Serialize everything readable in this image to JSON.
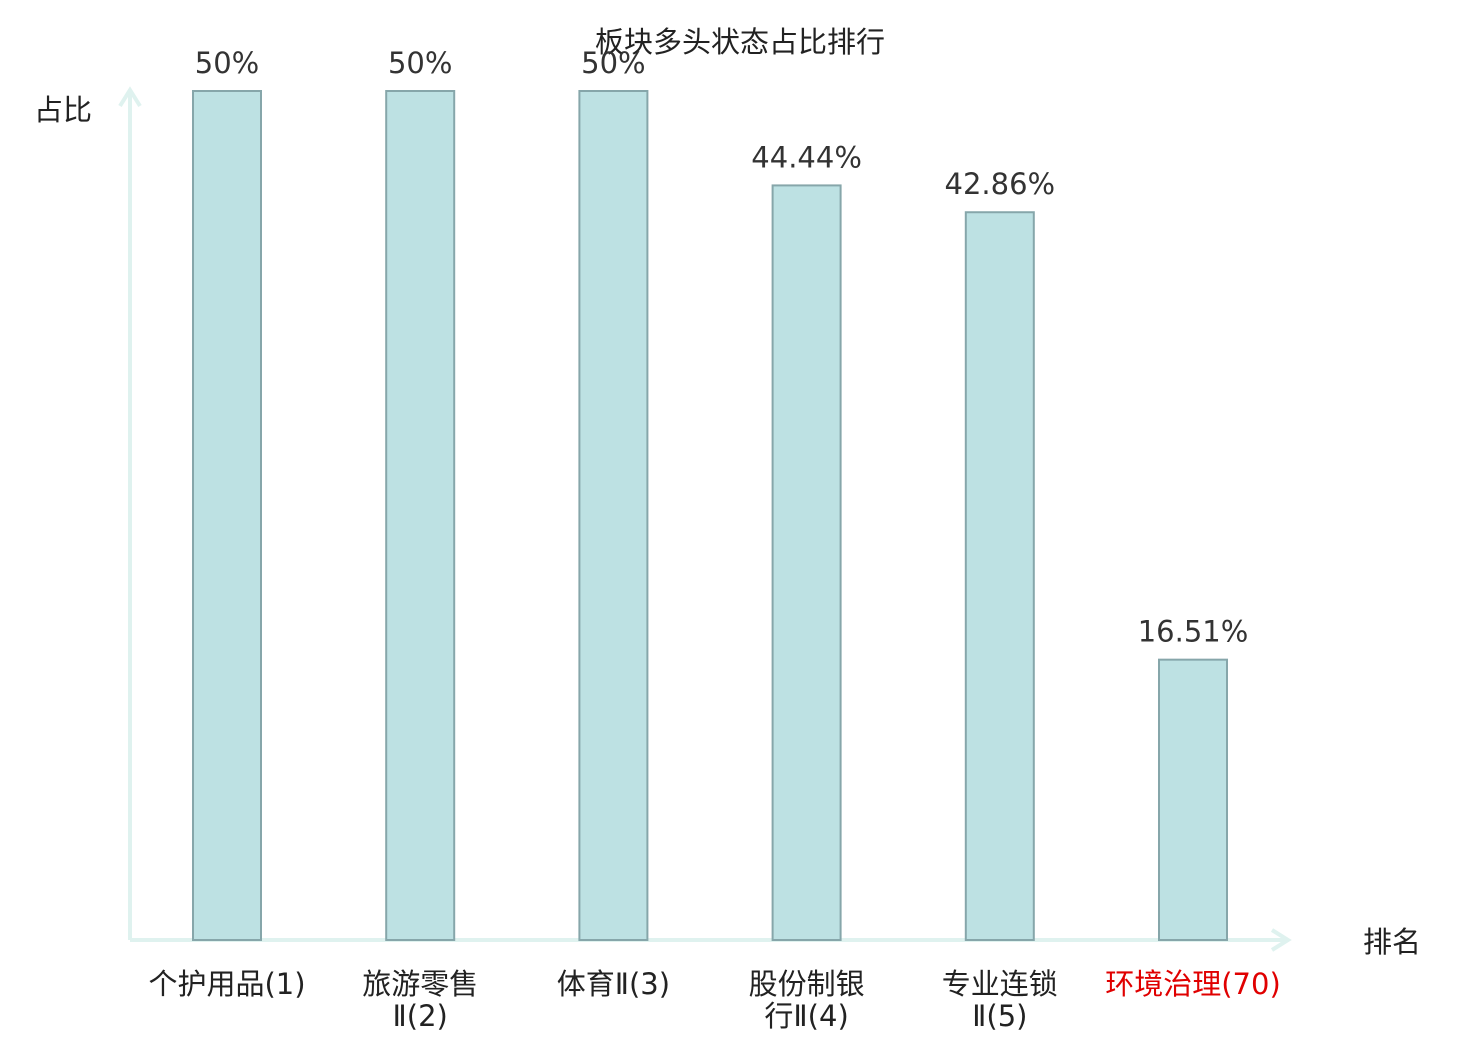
{
  "chart_data": {
    "type": "bar",
    "title": "板块多头状态占比排行",
    "ylabel": "占比",
    "xlabel": "排名",
    "ylim": [
      0,
      50
    ],
    "grid": false,
    "legend": "none",
    "categories": [
      [
        "个护用品(1)"
      ],
      [
        "旅游零售",
        "Ⅱ(2)"
      ],
      [
        "体育Ⅱ(3)"
      ],
      [
        "股份制银",
        "行Ⅱ(4)"
      ],
      [
        "专业连锁",
        "Ⅱ(5)"
      ],
      [
        "环境治理(70)"
      ]
    ],
    "values": [
      50,
      50,
      50,
      44.44,
      42.86,
      16.51
    ],
    "value_labels": [
      "50%",
      "50%",
      "50%",
      "44.44%",
      "42.86%",
      "16.51%"
    ],
    "highlight_index": 5,
    "colors": {
      "bar_fill": "#bde1e3",
      "bar_stroke": "#86a6aa",
      "axis": "#dff2ef",
      "highlight": "#e00000"
    }
  }
}
